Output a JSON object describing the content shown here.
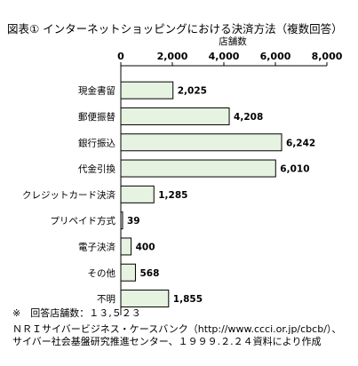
{
  "chart_data": {
    "type": "bar",
    "orientation": "horizontal",
    "title": "図表① インターネットショッピングにおける決済方法（複数回答）",
    "xlabel": "店舗数",
    "xlim": [
      0,
      8000
    ],
    "xticks": [
      0,
      2000,
      4000,
      6000,
      8000
    ],
    "tick_labels": [
      "0",
      "2,000",
      "4,000",
      "6,000",
      "8,000"
    ],
    "categories": [
      "現金書留",
      "郵便振替",
      "銀行振込",
      "代金引換",
      "クレジットカード決済",
      "プリペイド方式",
      "電子決済",
      "その他",
      "不明"
    ],
    "values": [
      2025,
      4208,
      6242,
      6010,
      1285,
      39,
      400,
      568,
      1855
    ],
    "value_labels": [
      "2,025",
      "4,208",
      "6,242",
      "6,010",
      "1,285",
      "39",
      "400",
      "568",
      "1,855"
    ],
    "grid": false,
    "legend": "none"
  },
  "footnotes": {
    "respondents": "※　回答店舗数：１３,５２３",
    "source_line1": "ＮＲＩサイバービジネス・ケースバンク（http://www.ccci.or.jp/cbcb/）、",
    "source_line2": "サイバー社会基盤研究推進センター、１９９９.２.２４資料により作成"
  },
  "colors": {
    "bar_fill": "#e6f3e1",
    "bar_stroke": "#000000",
    "background": "#ffffff"
  }
}
